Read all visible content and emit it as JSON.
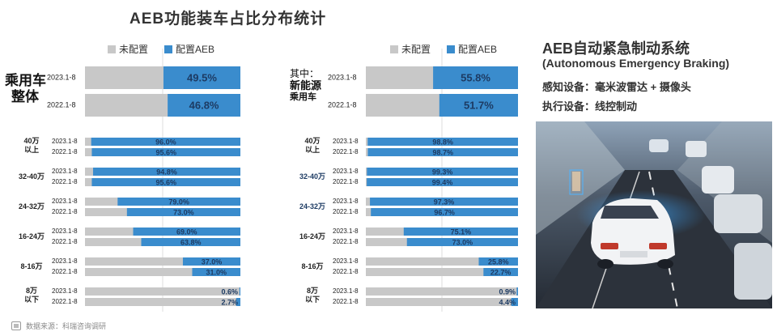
{
  "title": "AEB功能装车占比分布统计",
  "legend": {
    "gray": "未配置",
    "blue": "配置AEB"
  },
  "colors": {
    "gray": "#c8c8c8",
    "blue": "#3a8ccd",
    "text": "#222222"
  },
  "left_group_label": {
    "line1": "乘用车",
    "line2": "整体"
  },
  "right_group_label": {
    "line1": "其中：",
    "line2": "新能源",
    "line3": "乘用车"
  },
  "right_panel": {
    "title": "AEB自动紧急制动系统",
    "subtitle": "(Autonomous Emergency Braking)",
    "line1": "感知设备：毫米波雷达 + 摄像头",
    "line2": "执行设备：线控制动"
  },
  "source": "数据来源：科瑞咨询调研",
  "chart_data": [
    {
      "type": "bar",
      "orientation": "horizontal",
      "stacked_percent": true,
      "series": [
        {
          "name": "未配置"
        },
        {
          "name": "配置AEB"
        }
      ],
      "periods": [
        "2023.1-8",
        "2022.1-8"
      ],
      "overall": {
        "label": "乘用车整体",
        "values": [
          49.5,
          46.8
        ]
      },
      "value_labels": [
        "49.5%",
        "46.8%",
        "96.0%",
        "95.6%",
        "94.8%",
        "95.6%",
        "79.0%",
        "73.0%",
        "69.0%",
        "63.8%",
        "37.0%",
        "31.0%",
        "0.6%",
        "2.7%"
      ],
      "categories": [
        "40万以上",
        "32-40万",
        "24-32万",
        "16-24万",
        "8-16万",
        "8万以下"
      ],
      "values": [
        [
          96.0,
          95.6
        ],
        [
          94.8,
          95.6
        ],
        [
          79.0,
          73.0
        ],
        [
          69.0,
          63.8
        ],
        [
          37.0,
          31.0
        ],
        [
          0.6,
          2.7
        ]
      ],
      "xlim": [
        0,
        100
      ]
    },
    {
      "type": "bar",
      "orientation": "horizontal",
      "stacked_percent": true,
      "series": [
        {
          "name": "未配置"
        },
        {
          "name": "配置AEB"
        }
      ],
      "periods": [
        "2023.1-8",
        "2022.1-8"
      ],
      "overall": {
        "label": "新能源乘用车",
        "values": [
          55.8,
          51.7
        ]
      },
      "value_labels": [
        "55.8%",
        "51.7%",
        "98.8%",
        "98.7%",
        "99.3%",
        "99.4%",
        "97.3%",
        "96.7%",
        "75.1%",
        "73.0%",
        "25.8%",
        "22.7%",
        "0.9%",
        "4.4%"
      ],
      "categories": [
        "40万以上",
        "32-40万",
        "24-32万",
        "16-24万",
        "8-16万",
        "8万以下"
      ],
      "values": [
        [
          98.8,
          98.7
        ],
        [
          99.3,
          99.4
        ],
        [
          97.3,
          96.7
        ],
        [
          75.1,
          73.0
        ],
        [
          25.8,
          22.7
        ],
        [
          0.9,
          4.4
        ]
      ],
      "xlim": [
        0,
        100
      ]
    }
  ],
  "category_labels": [
    {
      "l1": "40万",
      "l2": "以上"
    },
    {
      "l1": "32-40万",
      "l2": ""
    },
    {
      "l1": "24-32万",
      "l2": ""
    },
    {
      "l1": "16-24万",
      "l2": ""
    },
    {
      "l1": "8-16万",
      "l2": ""
    },
    {
      "l1": "8万",
      "l2": "以下"
    }
  ]
}
